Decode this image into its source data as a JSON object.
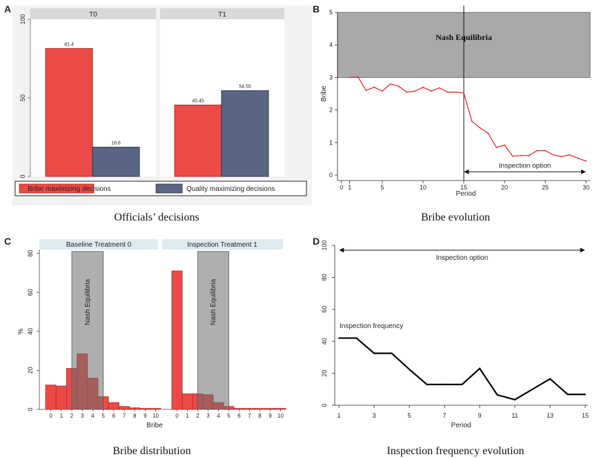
{
  "panels": {
    "A": {
      "letter": "A",
      "caption": "Officials’ decisions"
    },
    "B": {
      "letter": "B",
      "caption": "Bribe evolution"
    },
    "C": {
      "letter": "C",
      "caption": "Bribe distribution"
    },
    "D": {
      "letter": "D",
      "caption": "Inspection frequency evolution"
    }
  },
  "colors": {
    "bribe_red": "#ec4a46",
    "quality_blue": "#5a6583",
    "nash_gray": "#a9a9a9",
    "overlap_red": "#9e4344",
    "line_red": "#e11c1c",
    "line_black": "#000000",
    "strip_gray": "#d8d8d8",
    "strip_blue": "#dfeaf1"
  },
  "chart_data": [
    {
      "id": "A",
      "type": "bar",
      "title": "Officials’ decisions",
      "facets": [
        "T0",
        "T1"
      ],
      "series": [
        {
          "name": "Bribe maximizing decisions",
          "values": [
            81.4,
            45.45
          ]
        },
        {
          "name": "Quality maximizing decisions",
          "values": [
            18.6,
            54.55
          ]
        }
      ],
      "value_labels": [
        [
          "81.4",
          "18.6"
        ],
        [
          "45.45",
          "54.55"
        ]
      ],
      "ylim": [
        0,
        100
      ],
      "yticks": [
        0,
        50,
        100
      ],
      "ytick_labels": [
        "0",
        "50",
        "100"
      ],
      "legend_position": "bottom"
    },
    {
      "id": "B",
      "type": "line",
      "title": "Bribe evolution",
      "xlabel": "Period",
      "ylabel": "Bribe",
      "x": [
        1,
        2,
        3,
        4,
        5,
        6,
        7,
        8,
        9,
        10,
        11,
        12,
        13,
        14,
        15,
        16,
        17,
        18,
        19,
        20,
        21,
        22,
        23,
        24,
        25,
        26,
        27,
        28,
        29,
        30
      ],
      "y": [
        3.0,
        3.02,
        2.6,
        2.7,
        2.58,
        2.8,
        2.73,
        2.55,
        2.58,
        2.7,
        2.58,
        2.68,
        2.55,
        2.55,
        2.52,
        1.65,
        1.45,
        1.28,
        0.85,
        0.92,
        0.58,
        0.6,
        0.6,
        0.75,
        0.75,
        0.62,
        0.57,
        0.62,
        0.52,
        0.43
      ],
      "xlim": [
        -0.5,
        30.5
      ],
      "ylim": [
        0,
        5
      ],
      "xticks": [
        0,
        1,
        5,
        10,
        15,
        20,
        25,
        30
      ],
      "xtick_labels": [
        "0",
        "1",
        "5",
        "10",
        "15",
        "20",
        "25",
        "30"
      ],
      "yticks": [
        0,
        1,
        2,
        3,
        4,
        5
      ],
      "ytick_labels": [
        "0",
        "1",
        "2",
        "3",
        "4",
        "5"
      ],
      "nash_band": {
        "from": 3,
        "to": 5,
        "label": "Nash Equilibria"
      },
      "vline_at": 15,
      "arrow_span": [
        15,
        30
      ],
      "arrow_label": "Inspection option"
    },
    {
      "id": "C",
      "type": "bar",
      "title": "Bribe distribution",
      "xlabel": "Bribe",
      "ylabel": "%",
      "categories": [
        0,
        1,
        2,
        3,
        4,
        5,
        6,
        7,
        8,
        9,
        10
      ],
      "category_labels": [
        "0",
        "1",
        "2",
        "3",
        "4",
        "5",
        "6",
        "7",
        "8",
        "9",
        "10"
      ],
      "facets": [
        {
          "title": "Baseline Treatment 0",
          "values": [
            12.5,
            12,
            21,
            28.5,
            16,
            6.5,
            3.5,
            1.5,
            0.8,
            0.5,
            0.5
          ]
        },
        {
          "title": "Inspection Treatment 1",
          "values": [
            71,
            8,
            8,
            7.5,
            3.5,
            1.5,
            0.5,
            0.5,
            0.5,
            0.5,
            0.5
          ]
        }
      ],
      "nash_band": {
        "from": 2.5,
        "to": 5.5,
        "label": "Nash Equilibria"
      },
      "ylim": [
        0,
        82
      ],
      "yticks": [
        0,
        20,
        40,
        60,
        80
      ],
      "ytick_labels": [
        "0",
        "20",
        "40",
        "60",
        "80"
      ]
    },
    {
      "id": "D",
      "type": "line",
      "title": "Inspection frequency evolution",
      "xlabel": "Period",
      "x": [
        1,
        2,
        3,
        4,
        5,
        6,
        7,
        8,
        9,
        10,
        11,
        12,
        13,
        14,
        15
      ],
      "y": [
        42,
        42,
        32.5,
        32.5,
        22.5,
        13,
        13,
        13,
        23,
        6.5,
        3.5,
        10,
        16.5,
        6.8,
        6.8
      ],
      "xlim": [
        1,
        15
      ],
      "ylim": [
        0,
        100
      ],
      "xticks": [
        1,
        3,
        5,
        7,
        9,
        11,
        13,
        15
      ],
      "xtick_labels": [
        "1",
        "3",
        "5",
        "7",
        "9",
        "11",
        "13",
        "15"
      ],
      "yticks": [
        0,
        20,
        40,
        60,
        80,
        100
      ],
      "ytick_labels": [
        "0",
        "20",
        "40",
        "60",
        "80",
        "100"
      ],
      "series_label": "Inspection frequency",
      "arrow_span": [
        1,
        15
      ],
      "arrow_label": "Inspection option"
    }
  ]
}
